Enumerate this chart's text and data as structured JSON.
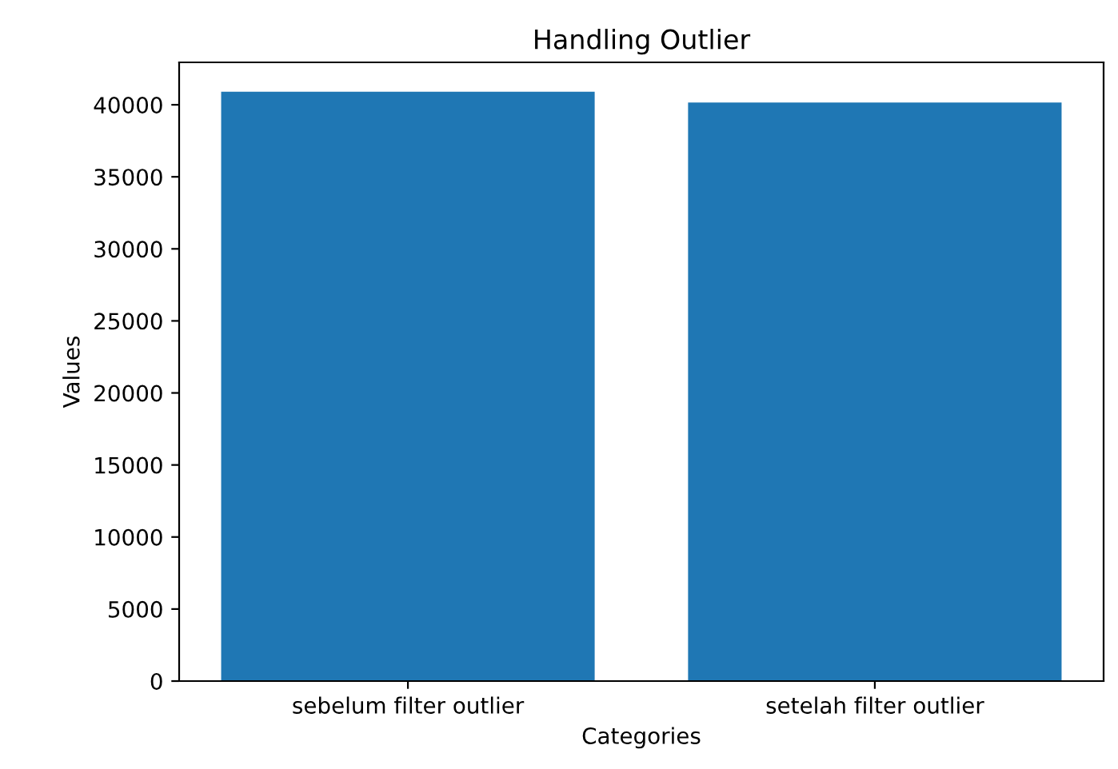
{
  "chart_data": {
    "type": "bar",
    "title": "Handling Outlier",
    "xlabel": "Categories",
    "ylabel": "Values",
    "categories": [
      "sebelum filter outlier",
      "setelah filter outlier"
    ],
    "values": [
      40900,
      40150
    ],
    "color": "#1f77b4",
    "ylim": [
      0,
      42945
    ],
    "yticks": [
      0,
      5000,
      10000,
      15000,
      20000,
      25000,
      30000,
      35000,
      40000
    ]
  }
}
